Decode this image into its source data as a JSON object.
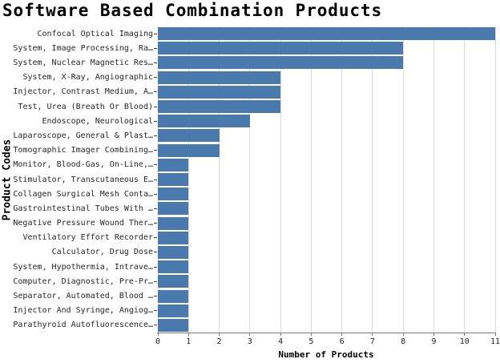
{
  "title": "Software Based Combination Products",
  "chart_data": {
    "type": "bar",
    "orientation": "horizontal",
    "title": "Software Based Combination Products",
    "xlabel": "Number of Products",
    "ylabel": "Product Codes",
    "xlim": [
      0,
      11
    ],
    "xticks": [
      0,
      1,
      2,
      3,
      4,
      5,
      6,
      7,
      8,
      9,
      10,
      11
    ],
    "grid": true,
    "legend": false,
    "bar_color": "#4a7aad",
    "gridline_color": "#d9d9d9",
    "categories": [
      "Confocal Optical Imaging",
      "System, Image Processing, Ra…",
      "System, Nuclear Magnetic Res…",
      "System, X-Ray, Angiographic",
      "Injector, Contrast Medium, A…",
      "Test, Urea (Breath Or Blood)",
      "Endoscope, Neurological",
      "Laparoscope, General & Plast…",
      "Tomographic Imager Combining…",
      "Monitor, Blood-Gas, On-Line,…",
      "Stimulator, Transcutaneous E…",
      "Collagen Surgical Mesh Conta…",
      "Gastrointestinal Tubes With …",
      "Negative Pressure Wound Ther…",
      "Ventilatory Effort Recorder",
      "Calculator, Drug Dose",
      "System, Hypothermia, Intrave…",
      "Computer, Diagnostic, Pre-Pr…",
      "Separator, Automated, Blood …",
      "Injector And Syringe, Angiog…",
      "Parathyroid Autofluorescence…"
    ],
    "values": [
      11,
      8,
      8,
      4,
      4,
      4,
      3,
      2,
      2,
      1,
      1,
      1,
      1,
      1,
      1,
      1,
      1,
      1,
      1,
      1,
      1
    ]
  }
}
